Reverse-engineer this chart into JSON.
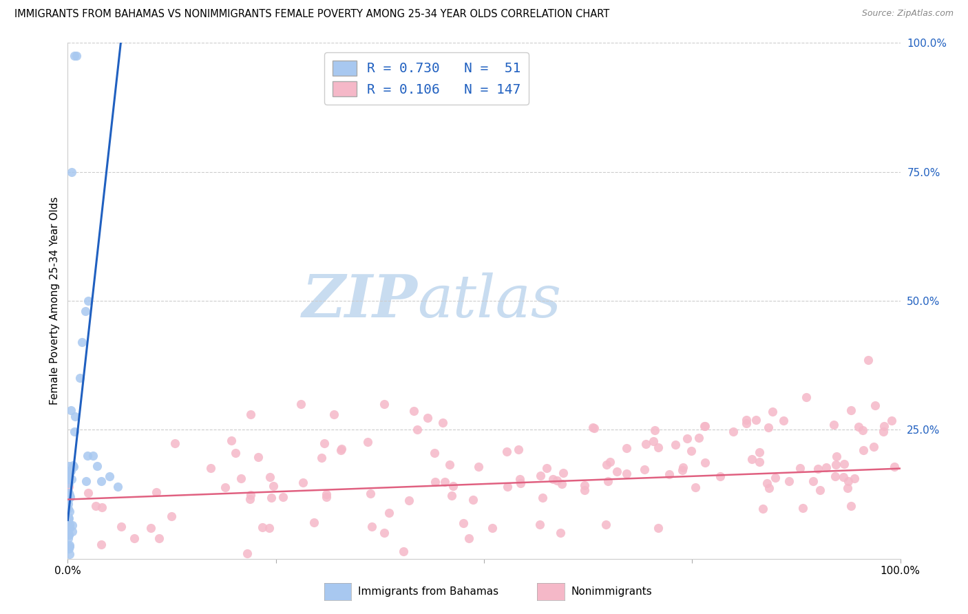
{
  "title": "IMMIGRANTS FROM BAHAMAS VS NONIMMIGRANTS FEMALE POVERTY AMONG 25-34 YEAR OLDS CORRELATION CHART",
  "source": "Source: ZipAtlas.com",
  "ylabel": "Female Poverty Among 25-34 Year Olds",
  "xlim": [
    0,
    1
  ],
  "ylim": [
    0,
    1
  ],
  "blue_R": 0.73,
  "blue_N": 51,
  "pink_R": 0.106,
  "pink_N": 147,
  "blue_color": "#A8C8F0",
  "pink_color": "#F5B8C8",
  "blue_line_color": "#2060C0",
  "pink_line_color": "#E06080",
  "legend_label_blue": "Immigrants from Bahamas",
  "legend_label_pink": "Nonimmigrants",
  "blue_seed": 77,
  "pink_seed": 99,
  "watermark_zip_color": "#C8DCF0",
  "watermark_atlas_color": "#C8DCF0"
}
